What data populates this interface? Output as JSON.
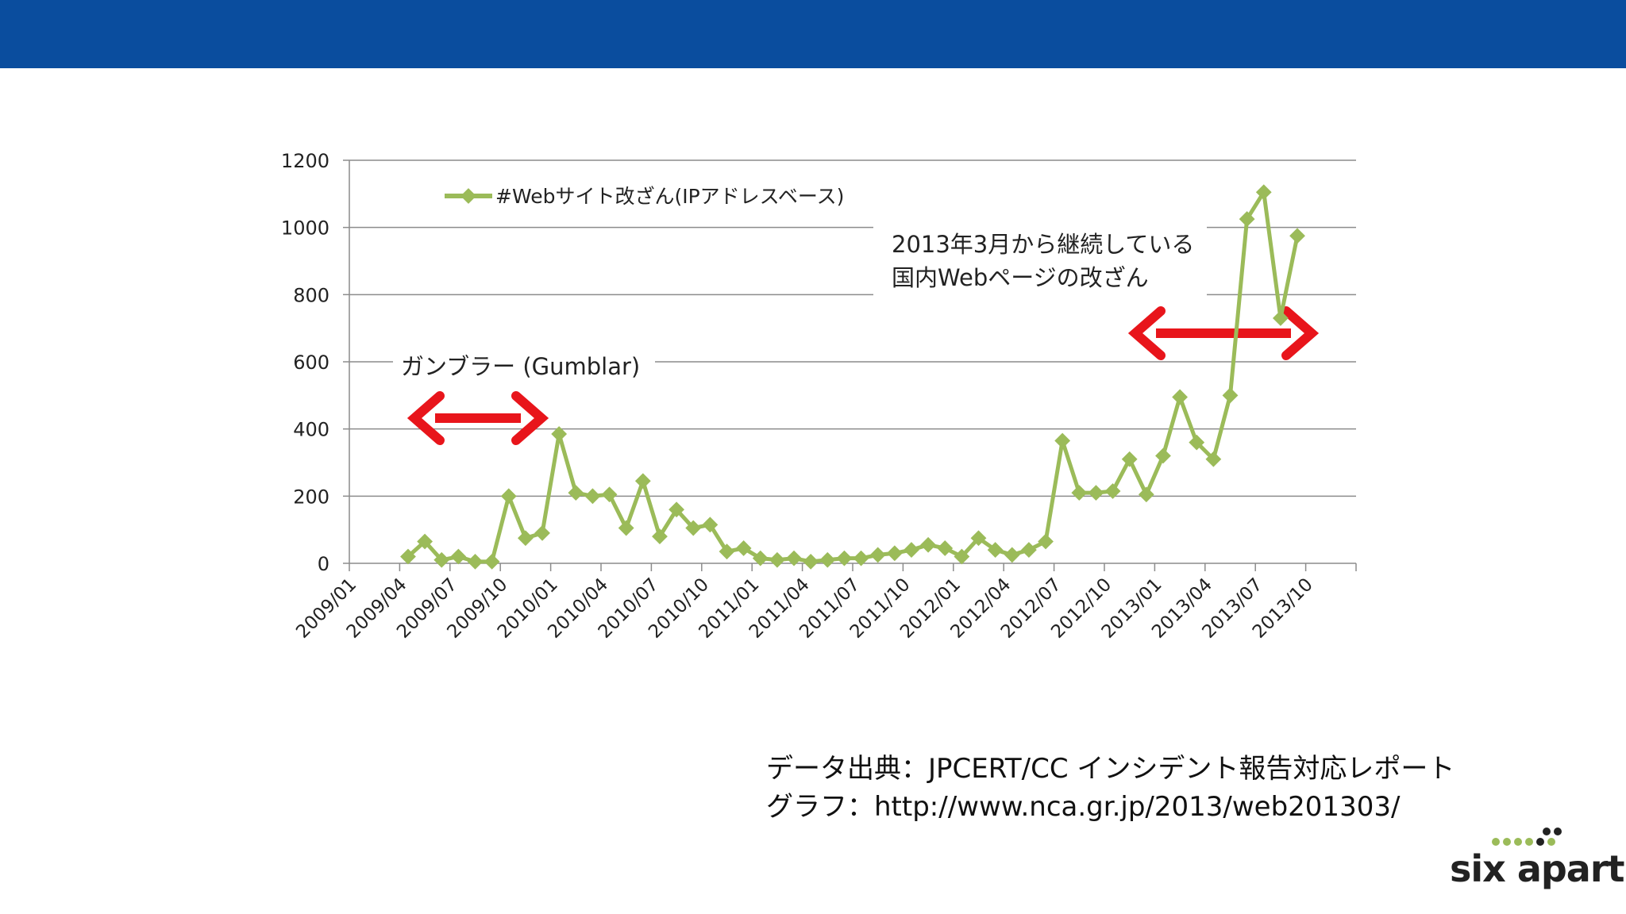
{
  "colors": {
    "header": "#0a4d9e",
    "series": "#9bbb59",
    "arrow": "#e8151b",
    "grid": "#8c8c8c"
  },
  "chart_data": {
    "type": "line",
    "title": "",
    "xlabel": "",
    "ylabel": "",
    "ylim": [
      0,
      1200
    ],
    "yticks": [
      0,
      200,
      400,
      600,
      800,
      1000,
      1200
    ],
    "xtick_labels": [
      "2009/01",
      "2009/04",
      "2009/07",
      "2009/10",
      "2010/01",
      "2010/04",
      "2010/07",
      "2010/10",
      "2011/01",
      "2011/04",
      "2011/07",
      "2011/10",
      "2012/01",
      "2012/04",
      "2012/07",
      "2012/10",
      "2013/01",
      "2013/04",
      "2013/07",
      "2013/10"
    ],
    "grid": true,
    "legend_position": "top-left",
    "series": [
      {
        "name": "#Webサイト改ざん(IPアドレスベース)",
        "start_month": "2009/04",
        "values": [
          20,
          65,
          10,
          20,
          5,
          5,
          200,
          75,
          90,
          385,
          210,
          200,
          205,
          105,
          245,
          80,
          160,
          105,
          115,
          35,
          45,
          15,
          10,
          15,
          5,
          10,
          15,
          15,
          25,
          30,
          40,
          55,
          45,
          20,
          75,
          40,
          25,
          40,
          65,
          365,
          210,
          210,
          215,
          310,
          205,
          320,
          495,
          360,
          310,
          500,
          1025,
          1105,
          730,
          975
        ]
      }
    ],
    "annotations": [
      {
        "id": "gumblar",
        "text": "ガンブラー (Gumblar)",
        "range": [
          "2009/07",
          "2009/12"
        ]
      },
      {
        "id": "domestic",
        "line1": "2013年3月から継続している",
        "line2": "国内Webページの改ざん",
        "range": [
          "2013/03",
          "2013/08"
        ]
      }
    ]
  },
  "footer": {
    "source_line": "データ出典：JPCERT/CC インシデント報告対応レポート",
    "graph_line": "グラフ：http://www.nca.gr.jp/2013/web201303/"
  },
  "logo": {
    "text": "six apart",
    "icon": "six-apart-dots-logo"
  }
}
